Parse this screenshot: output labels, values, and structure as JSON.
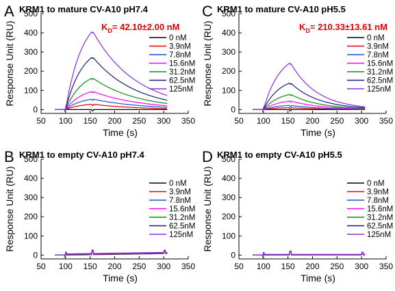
{
  "chart_data": [
    {
      "panel": "A",
      "type": "line",
      "title": "KRM1 to mature CV-A10 pH7.4",
      "annotation": {
        "text": "K",
        "sub": "D",
        "rest": "= 42.10±2.00 nM"
      },
      "xlabel": "Time (s)",
      "ylabel": "Response Unit (RU)",
      "xlim": [
        50,
        350
      ],
      "ylim": [
        -20,
        500
      ],
      "xticks": [
        50,
        100,
        150,
        200,
        250,
        300,
        350
      ],
      "yticks": [
        0,
        100,
        200,
        300,
        400,
        500
      ],
      "legend_position": "right",
      "series": [
        {
          "name": "0 nM",
          "color": "#000000",
          "peak": 0,
          "end": 0
        },
        {
          "name": "3.9nM",
          "color": "#e00000",
          "peak": 28,
          "end": 5
        },
        {
          "name": "7.8nM",
          "color": "#1f4fd1",
          "peak": 55,
          "end": 12
        },
        {
          "name": "15.6nM",
          "color": "#ff00ff",
          "peak": 95,
          "end": 20
        },
        {
          "name": "31.2nM",
          "color": "#128a12",
          "peak": 165,
          "end": 32
        },
        {
          "name": "62.5nM",
          "color": "#1b1b7a",
          "peak": 275,
          "end": 50
        },
        {
          "name": "125nM",
          "color": "#8a2be2",
          "peak": 410,
          "end": 75
        }
      ]
    },
    {
      "panel": "C",
      "type": "line",
      "title": "KRM1 to mature CV-A10 pH5.5",
      "annotation": {
        "text": "K",
        "sub": "D",
        "rest": "= 210.33±13.61 nM"
      },
      "xlabel": "Time (s)",
      "ylabel": "Response Unit (RU)",
      "xlim": [
        50,
        350
      ],
      "ylim": [
        -20,
        500
      ],
      "xticks": [
        50,
        100,
        150,
        200,
        250,
        300,
        350
      ],
      "yticks": [
        0,
        100,
        200,
        300,
        400,
        500
      ],
      "legend_position": "right",
      "series": [
        {
          "name": "0 nM",
          "color": "#000000",
          "peak": 0,
          "end": 0
        },
        {
          "name": "3.9nM",
          "color": "#e00000",
          "peak": 10,
          "end": 1
        },
        {
          "name": "7.8nM",
          "color": "#1f4fd1",
          "peak": 22,
          "end": 2
        },
        {
          "name": "15.6nM",
          "color": "#ff00ff",
          "peak": 45,
          "end": 4
        },
        {
          "name": "31.2nM",
          "color": "#128a12",
          "peak": 80,
          "end": 6
        },
        {
          "name": "62.5nM",
          "color": "#1b1b7a",
          "peak": 140,
          "end": 10
        },
        {
          "name": "125nM",
          "color": "#8a2be2",
          "peak": 245,
          "end": 15
        }
      ]
    },
    {
      "panel": "B",
      "type": "line",
      "title": "KRM1 to empty CV-A10 pH7.4",
      "xlabel": "Time (s)",
      "ylabel": "Response Unit (RU)",
      "xlim": [
        50,
        350
      ],
      "ylim": [
        -20,
        500
      ],
      "xticks": [
        50,
        100,
        150,
        200,
        250,
        300,
        350
      ],
      "yticks": [
        0,
        100,
        200,
        300,
        400,
        500
      ],
      "legend_position": "right",
      "series": [
        {
          "name": "0 nM",
          "color": "#000000",
          "peak": 0,
          "end": 8
        },
        {
          "name": "3.9nM",
          "color": "#e00000",
          "peak": 1,
          "end": 9
        },
        {
          "name": "7.8nM",
          "color": "#1f4fd1",
          "peak": 2,
          "end": 10
        },
        {
          "name": "15.6nM",
          "color": "#ff00ff",
          "peak": 3,
          "end": 11
        },
        {
          "name": "31.2nM",
          "color": "#128a12",
          "peak": 4,
          "end": 12
        },
        {
          "name": "62.5nM",
          "color": "#1b1b7a",
          "peak": 5,
          "end": 13
        },
        {
          "name": "125nM",
          "color": "#8a2be2",
          "peak": 6,
          "end": 14
        }
      ]
    },
    {
      "panel": "D",
      "type": "line",
      "title": "KRM1 to empty CV-A10 pH5.5",
      "xlabel": "Time (s)",
      "ylabel": "Response Unit (RU)",
      "xlim": [
        50,
        350
      ],
      "ylim": [
        -20,
        500
      ],
      "xticks": [
        50,
        100,
        150,
        200,
        250,
        300,
        350
      ],
      "yticks": [
        0,
        100,
        200,
        300,
        400,
        500
      ],
      "legend_position": "right",
      "series": [
        {
          "name": "0 nM",
          "color": "#000000",
          "peak": 0,
          "end": 1
        },
        {
          "name": "3.9nM",
          "color": "#e00000",
          "peak": 1,
          "end": 1
        },
        {
          "name": "7.8nM",
          "color": "#1f4fd1",
          "peak": 1,
          "end": 2
        },
        {
          "name": "15.6nM",
          "color": "#ff00ff",
          "peak": 2,
          "end": 2
        },
        {
          "name": "31.2nM",
          "color": "#128a12",
          "peak": 2,
          "end": 2
        },
        {
          "name": "62.5nM",
          "color": "#1b1b7a",
          "peak": 3,
          "end": 3
        },
        {
          "name": "125nM",
          "color": "#8a2be2",
          "peak": 3,
          "end": 3
        }
      ]
    }
  ]
}
